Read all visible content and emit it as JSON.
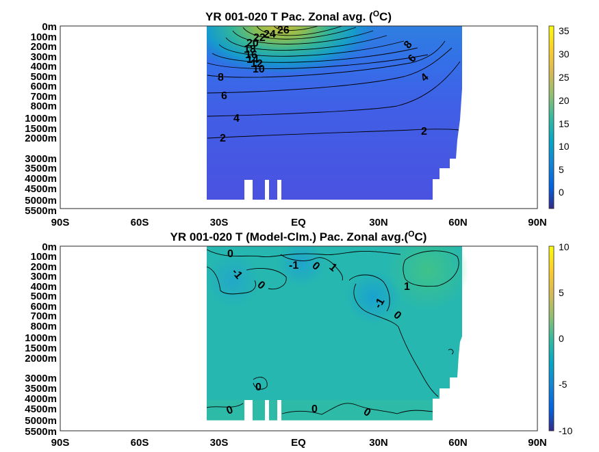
{
  "chart_data": [
    {
      "type": "heatmap",
      "title": "YR 001-020 T Pac. Zonal avg. (",
      "title_sup": "O",
      "title_end": "C)",
      "x_ticks": [
        "90S",
        "60S",
        "30S",
        "EQ",
        "30N",
        "60N",
        "90N"
      ],
      "x_values": [
        -90,
        -60,
        -30,
        0,
        30,
        60,
        90
      ],
      "y_ticks": [
        "0m",
        "100m",
        "200m",
        "300m",
        "400m",
        "500m",
        "600m",
        "700m",
        "800m",
        "1000m",
        "1500m",
        "2000m",
        "3000m",
        "3500m",
        "4000m",
        "4500m",
        "5000m",
        "5500m"
      ],
      "colorbar": {
        "ticks": [
          "35",
          "30",
          "25",
          "20",
          "15",
          "10",
          "5",
          "0"
        ],
        "range": [
          -3,
          36
        ],
        "colormap": "parula"
      },
      "contour_labels": [
        "26",
        "24",
        "22",
        "20",
        "18",
        "16",
        "14",
        "12",
        "10",
        "8",
        "6",
        "4",
        "2",
        "8",
        "6",
        "4",
        "2"
      ],
      "data_extent": {
        "lat_min": -35,
        "lat_max": 62
      }
    },
    {
      "type": "heatmap",
      "title": "YR 001-020 T (Model-Clm.) Pac. Zonal avg.(",
      "title_sup": "O",
      "title_end": "C)",
      "x_ticks": [
        "90S",
        "60S",
        "30S",
        "EQ",
        "30N",
        "60N",
        "90N"
      ],
      "x_values": [
        -90,
        -60,
        -30,
        0,
        30,
        60,
        90
      ],
      "y_ticks": [
        "0m",
        "100m",
        "200m",
        "300m",
        "400m",
        "500m",
        "600m",
        "700m",
        "800m",
        "1000m",
        "1500m",
        "2000m",
        "3000m",
        "3500m",
        "4000m",
        "4500m",
        "5000m",
        "5500m"
      ],
      "colorbar": {
        "ticks": [
          "10",
          "5",
          "0",
          "-5",
          "-10"
        ],
        "range": [
          -10,
          10
        ],
        "colormap": "parula"
      },
      "contour_labels": [
        "0",
        "-1",
        "0",
        "-1",
        "0",
        "1",
        "0",
        "-1",
        "0",
        "1",
        "0",
        "0",
        "0",
        "0"
      ],
      "data_extent": {
        "lat_min": -35,
        "lat_max": 62
      }
    }
  ]
}
